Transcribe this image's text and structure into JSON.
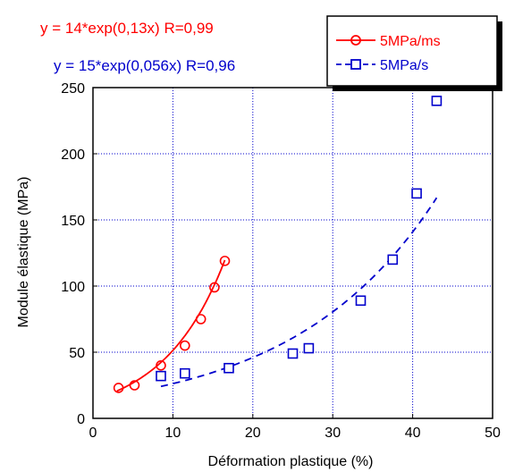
{
  "chart_data": {
    "type": "scatter",
    "xlabel": "Déformation plastique  (%)",
    "ylabel": "Module élastique  (MPa)",
    "xlim": [
      0,
      50
    ],
    "ylim": [
      0,
      250
    ],
    "xticks": [
      "0",
      "10",
      "20",
      "30",
      "40",
      "50"
    ],
    "yticks": [
      "0",
      "50",
      "100",
      "150",
      "200",
      "250"
    ],
    "grid": true,
    "legend_position": "top-right",
    "annotations": [
      {
        "text": "y = 14*exp(0,13x)  R=0,99",
        "color": "#ff0000"
      },
      {
        "text": "y = 15*exp(0,056x)  R=0,96",
        "color": "#0000cc"
      }
    ],
    "series": [
      {
        "name": "5MPa/ms",
        "color": "#ff0000",
        "marker": "circle",
        "fit_line": "solid",
        "fit": {
          "a": 14,
          "b": 0.13,
          "x_range": [
            3,
            16.5
          ]
        },
        "x": [
          3.2,
          5.2,
          8.5,
          11.5,
          13.5,
          15.2,
          16.5
        ],
        "y": [
          23,
          25,
          40,
          55,
          75,
          99,
          119
        ]
      },
      {
        "name": "5MPa/s",
        "color": "#0000cc",
        "marker": "square",
        "fit_line": "dashed",
        "fit": {
          "a": 15,
          "b": 0.056,
          "x_range": [
            8.5,
            43
          ]
        },
        "x": [
          8.5,
          11.5,
          17,
          25,
          27,
          33.5,
          37.5,
          40.5,
          43
        ],
        "y": [
          32,
          34,
          38,
          49,
          53,
          89,
          120,
          170,
          240
        ]
      }
    ]
  }
}
